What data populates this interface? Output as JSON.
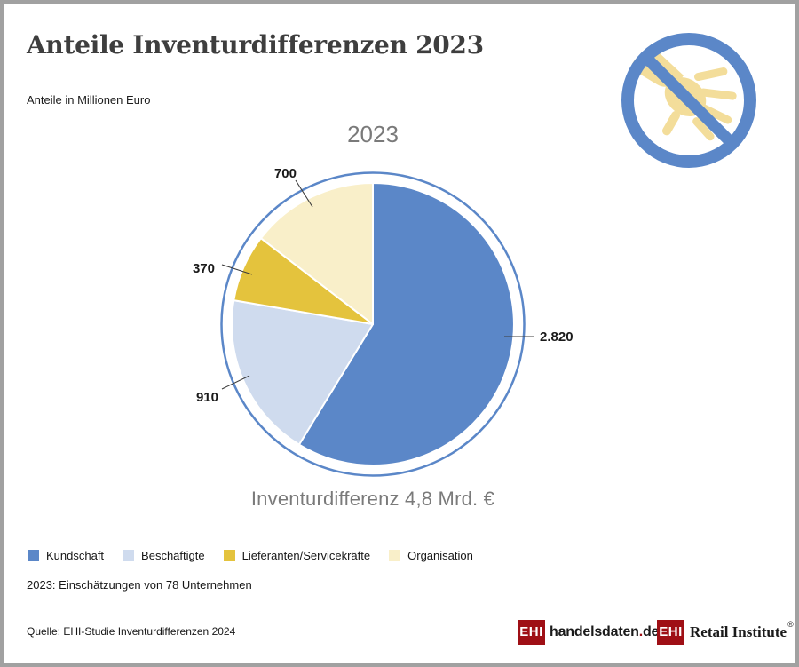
{
  "header": {
    "title": "Anteile Inventurdifferenzen 2023",
    "subtitle": "Anteile in Millionen Euro"
  },
  "icons": {
    "top_right": "no-stealing-hand-prohibited-icon"
  },
  "chart_data": {
    "type": "pie",
    "title": "2023",
    "caption": "Inventurdifferenz 4,8 Mrd. €",
    "units": "Millionen Euro",
    "categories": [
      "Kundschaft",
      "Beschäftigte",
      "Lieferanten/Servicekräfte",
      "Organisation"
    ],
    "values": [
      2820,
      910,
      370,
      700
    ],
    "value_labels": [
      "2.820",
      "910",
      "370",
      "700"
    ],
    "colors": [
      "#5b87c8",
      "#cfdbee",
      "#e4c33d",
      "#f9efc9"
    ],
    "total": 4800,
    "start_angle_deg": 0,
    "direction": "clockwise",
    "legend_position": "bottom-left"
  },
  "notes": {
    "footnote": "2023: Einschätzungen von 78 Unternehmen",
    "source": "Quelle: EHI-Studie Inventurdifferenzen 2024"
  },
  "logos": [
    {
      "badge": "EHI",
      "name": "handelsdaten",
      "dot": ".",
      "tld": "de"
    },
    {
      "badge": "EHI",
      "name": "Retail Institute",
      "registered": "®"
    }
  ],
  "colors": {
    "accent_blue": "#5b87c8",
    "light_blue": "#cfdbee",
    "slice_yellow": "#e4c33d",
    "slice_cream": "#f9efc9",
    "brand_red": "#9f0f15",
    "hand_yellow": "#f3dd9a",
    "border_gray": "#a1a1a1",
    "title_gray": "#3e3e3e",
    "muted_gray": "#7a7a7a"
  }
}
